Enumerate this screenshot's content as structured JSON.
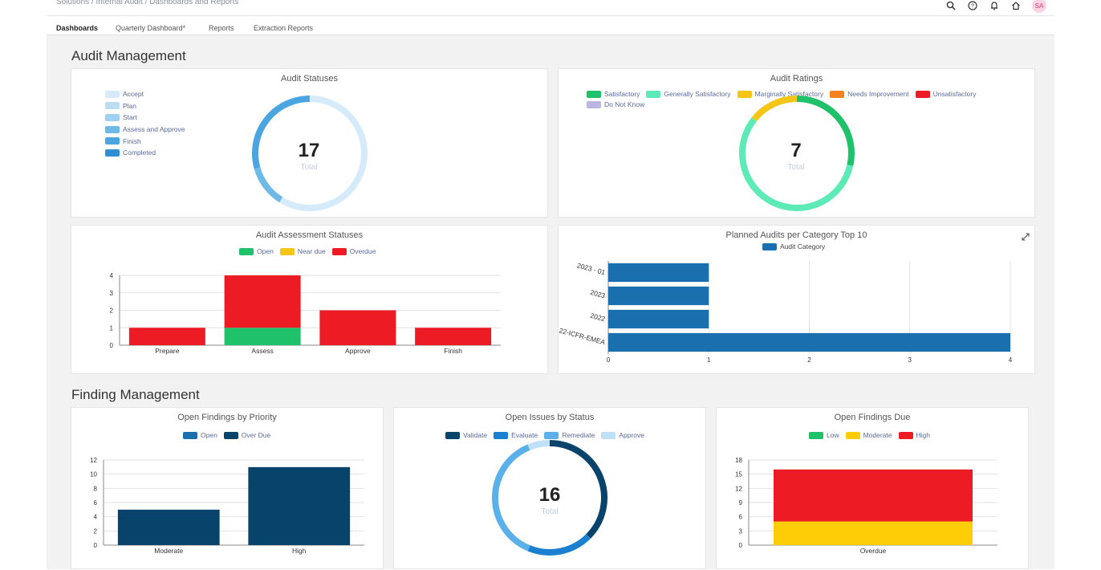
{
  "breadcrumb": "Solutions / Internal Audit / Dashboards and Reports",
  "avatar": "SA",
  "tabs": [
    {
      "label": "Dashboards",
      "active": true
    },
    {
      "label": "Quarterly Dashboard*",
      "active": false
    },
    {
      "label": "Reports",
      "active": false
    },
    {
      "label": "Extraction Reports",
      "active": false
    }
  ],
  "sections": {
    "audit": "Audit Management",
    "finding": "Finding Management"
  },
  "total_label": "Total",
  "icons": {
    "search": "search-icon",
    "help": "help-icon",
    "bell": "bell-icon",
    "home": "home-icon",
    "expand": "expand-icon"
  },
  "chart_data": [
    {
      "id": "audit_statuses",
      "type": "pie",
      "title": "Audit Statuses",
      "center_value": "17",
      "legend": [
        "Accept",
        "Plan",
        "Start",
        "Assess and Approve",
        "Finish",
        "Completed"
      ],
      "colors": [
        "#d6ebf9",
        "#bcdef4",
        "#9fd0f0",
        "#6fb9e8",
        "#4aa5e0",
        "#2f8fd3"
      ],
      "values": [
        10,
        2,
        5
      ]
    },
    {
      "id": "audit_ratings",
      "type": "pie",
      "title": "Audit Ratings",
      "center_value": "7",
      "legend": [
        "Satisfactory",
        "Generally Satisfactory",
        "Marginally Satisfactory",
        "Needs Improvement",
        "Unsatisfactory",
        "Do Not Know"
      ],
      "colors": [
        "#1fc16b",
        "#5ceab7",
        "#f5c518",
        "#f5821f",
        "#ed1c24",
        "#b9b7e0"
      ],
      "values": [
        2,
        4,
        1
      ]
    },
    {
      "id": "audit_assessment_statuses",
      "type": "bar",
      "title": "Audit Assessment Statuses",
      "categories": [
        "Prepare",
        "Assess",
        "Approve",
        "Finish"
      ],
      "series": [
        {
          "name": "Open",
          "color": "#1fc16b",
          "values": [
            0,
            1,
            0,
            0
          ]
        },
        {
          "name": "Near due",
          "color": "#f5c518",
          "values": [
            0,
            0,
            0,
            0
          ]
        },
        {
          "name": "Overdue",
          "color": "#ed1c24",
          "values": [
            1,
            3,
            2,
            1
          ]
        }
      ],
      "ylim": [
        0,
        4
      ],
      "yticks": [
        "0",
        "1",
        "2",
        "3",
        "4"
      ]
    },
    {
      "id": "planned_audits",
      "type": "bar",
      "orientation": "horizontal",
      "title": "Planned Audits per Category Top 10",
      "categories": [
        "2023 - 01",
        "2023",
        "2022",
        "22-ICFR-EMEA"
      ],
      "series": [
        {
          "name": "Audit Category",
          "color": "#1a6faf",
          "values": [
            1,
            1,
            1,
            4
          ]
        }
      ],
      "xlim": [
        0,
        4
      ],
      "xticks": [
        "0",
        "1",
        "2",
        "3",
        "4"
      ]
    },
    {
      "id": "open_findings_priority",
      "type": "bar",
      "title": "Open Findings by Priority",
      "categories": [
        "Moderate",
        "High"
      ],
      "series": [
        {
          "name": "Open",
          "color": "#1a6faf",
          "values": [
            0,
            0
          ]
        },
        {
          "name": "Over Due",
          "color": "#08436b",
          "values": [
            5,
            11
          ]
        }
      ],
      "ylim": [
        0,
        12
      ],
      "yticks": [
        "0",
        "2",
        "4",
        "6",
        "8",
        "10",
        "12"
      ]
    },
    {
      "id": "open_issues_status",
      "type": "pie",
      "title": "Open Issues by Status",
      "center_value": "16",
      "legend": [
        "Validate",
        "Evaluate",
        "Remediate",
        "Approve"
      ],
      "colors": [
        "#08436b",
        "#1a80cf",
        "#5ab0e8",
        "#bfe0f7"
      ],
      "values": [
        6,
        3,
        6,
        1
      ]
    },
    {
      "id": "open_findings_due",
      "type": "bar",
      "title": "Open Findings Due",
      "categories": [
        "Overdue"
      ],
      "series": [
        {
          "name": "Low",
          "color": "#1fc16b",
          "values": [
            0
          ]
        },
        {
          "name": "Moderate",
          "color": "#ffcd05",
          "values": [
            5
          ]
        },
        {
          "name": "High",
          "color": "#ed1c24",
          "values": [
            11
          ]
        }
      ],
      "ylim": [
        0,
        18
      ],
      "yticks": [
        "0",
        "3",
        "6",
        "9",
        "12",
        "15",
        "18"
      ]
    }
  ]
}
